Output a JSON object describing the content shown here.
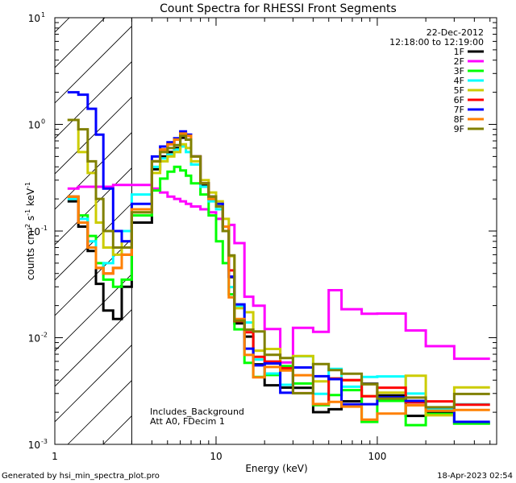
{
  "chart_data": {
    "type": "line",
    "title": "Count Spectra for RHESSI Front Segments",
    "xlabel": "Energy (keV)",
    "ylabel": "counts cm",
    "ylabel_sup1": "-2",
    "ylabel_mid": " s",
    "ylabel_sup2": "-1",
    "ylabel_end": " keV",
    "ylabel_sup3": "-1",
    "xscale": "log",
    "yscale": "log",
    "xlim": [
      1,
      550
    ],
    "ylim": [
      0.001,
      10
    ],
    "x_ticks": [
      {
        "v": 1,
        "label": "1"
      },
      {
        "v": 10,
        "label": "10"
      },
      {
        "v": 100,
        "label": "100"
      }
    ],
    "y_ticks": [
      {
        "v": 0.001,
        "base": "10",
        "exp": "-3"
      },
      {
        "v": 0.01,
        "base": "10",
        "exp": "-2"
      },
      {
        "v": 0.1,
        "base": "10",
        "exp": "-1"
      },
      {
        "v": 1,
        "base": "10",
        "exp": "0"
      },
      {
        "v": 10,
        "base": "10",
        "exp": "1"
      }
    ],
    "hatch_region_xmax": 3,
    "date": "22-Dec-2012",
    "time_range": "12:18:00 to 12:19:00",
    "annotation1": "Includes_Background",
    "annotation2": "Att A0, FDecim 1",
    "footer_left": "Generated by hsi_min_spectra_plot.pro",
    "footer_right": "18-Apr-2023 02:54",
    "legend_position": "top-right",
    "series": [
      {
        "name": "1F",
        "color": "#000000",
        "values": [
          0.19,
          0.11,
          0.065,
          0.032,
          0.018,
          0.015,
          0.03,
          0.12,
          0.38,
          0.5,
          0.55,
          0.6,
          0.75,
          0.72,
          0.5,
          0.27,
          0.21,
          0.17,
          0.1,
          0.03,
          0.013,
          0.009,
          0.006,
          0.0048,
          0.0039,
          0.0034,
          0.003,
          0.0028,
          0.0027,
          0.0025,
          0.0024,
          0.0022,
          0.0021,
          0.002
        ]
      },
      {
        "name": "2F",
        "color": "#ff00ff",
        "values": [
          0.25,
          0.26,
          0.26,
          0.26,
          0.26,
          0.27,
          0.27,
          0.27,
          0.25,
          0.23,
          0.21,
          0.2,
          0.19,
          0.18,
          0.17,
          0.16,
          0.15,
          0.13,
          0.11,
          0.085,
          0.058,
          0.035,
          0.018,
          0.0085,
          0.0073,
          0.01,
          0.015,
          0.02,
          0.024,
          0.019,
          0.016,
          0.013,
          0.009,
          0.006
        ]
      },
      {
        "name": "3F",
        "color": "#00ff00",
        "values": [
          0.21,
          0.14,
          0.09,
          0.05,
          0.035,
          0.03,
          0.035,
          0.14,
          0.24,
          0.31,
          0.36,
          0.4,
          0.37,
          0.33,
          0.28,
          0.22,
          0.14,
          0.08,
          0.05,
          0.025,
          0.012,
          0.008,
          0.006,
          0.0048,
          0.004,
          0.0035,
          0.0031,
          0.0028,
          0.0026,
          0.0024,
          0.0023,
          0.0022,
          0.0021,
          0.002
        ]
      },
      {
        "name": "4F",
        "color": "#00ffff",
        "values": [
          0.2,
          0.13,
          0.08,
          0.045,
          0.05,
          0.07,
          0.1,
          0.22,
          0.4,
          0.48,
          0.52,
          0.58,
          0.62,
          0.55,
          0.42,
          0.26,
          0.19,
          0.16,
          0.11,
          0.04,
          0.018,
          0.011,
          0.008,
          0.006,
          0.005,
          0.0045,
          0.0042,
          0.004,
          0.0038,
          0.0035,
          0.0033,
          0.003,
          0.0028,
          0.0026
        ]
      },
      {
        "name": "5F",
        "color": "#cccc00",
        "values": [
          1.1,
          0.55,
          0.35,
          0.12,
          0.07,
          0.06,
          0.08,
          0.15,
          0.35,
          0.45,
          0.5,
          0.55,
          0.65,
          0.6,
          0.45,
          0.3,
          0.23,
          0.19,
          0.13,
          0.045,
          0.02,
          0.012,
          0.008,
          0.0062,
          0.0052,
          0.0046,
          0.0042,
          0.004,
          0.0038,
          0.0035,
          0.0033,
          0.003,
          0.0028,
          0.0026
        ]
      },
      {
        "name": "6F",
        "color": "#ff0000",
        "values": [
          0.21,
          0.12,
          0.07,
          0.045,
          0.04,
          0.045,
          0.06,
          0.16,
          0.45,
          0.58,
          0.65,
          0.72,
          0.82,
          0.78,
          0.5,
          0.28,
          0.2,
          0.17,
          0.11,
          0.03,
          0.013,
          0.009,
          0.006,
          0.0048,
          0.004,
          0.0035,
          0.0031,
          0.0029,
          0.0027,
          0.0025,
          0.0024,
          0.0023,
          0.0022,
          0.0021
        ]
      },
      {
        "name": "7F",
        "color": "#0000ff",
        "values": [
          2.0,
          1.9,
          1.4,
          0.8,
          0.25,
          0.1,
          0.08,
          0.18,
          0.5,
          0.62,
          0.68,
          0.74,
          0.86,
          0.8,
          0.5,
          0.28,
          0.21,
          0.18,
          0.11,
          0.035,
          0.015,
          0.01,
          0.007,
          0.0052,
          0.0043,
          0.0038,
          0.0034,
          0.0031,
          0.0029,
          0.0027,
          0.0025,
          0.0024,
          0.0023,
          0.0022
        ]
      },
      {
        "name": "8F",
        "color": "#ff8000",
        "values": [
          0.21,
          0.12,
          0.07,
          0.045,
          0.04,
          0.045,
          0.06,
          0.16,
          0.45,
          0.58,
          0.65,
          0.72,
          0.82,
          0.78,
          0.5,
          0.28,
          0.2,
          0.17,
          0.11,
          0.03,
          0.013,
          0.009,
          0.006,
          0.0048,
          0.004,
          0.0035,
          0.0031,
          0.0029,
          0.0027,
          0.0025,
          0.0024,
          0.0023,
          0.0022,
          0.0021
        ]
      },
      {
        "name": "9F",
        "color": "#808000",
        "values": [
          1.1,
          0.9,
          0.45,
          0.2,
          0.1,
          0.07,
          0.07,
          0.15,
          0.45,
          0.55,
          0.6,
          0.64,
          0.78,
          0.72,
          0.5,
          0.28,
          0.21,
          0.17,
          0.1,
          0.04,
          0.018,
          0.011,
          0.008,
          0.006,
          0.005,
          0.0045,
          0.004,
          0.0037,
          0.0035,
          0.0032,
          0.003,
          0.0028,
          0.0026,
          0.0024
        ]
      }
    ],
    "energy_edges": [
      1.2,
      1.4,
      1.6,
      1.8,
      2.0,
      2.3,
      2.6,
      3.0,
      4.0,
      4.5,
      5.0,
      5.5,
      6.0,
      6.5,
      7.0,
      8.0,
      9.0,
      10.0,
      11.0,
      12.0,
      13.0,
      15.0,
      17.0,
      20.0,
      25.0,
      30.0,
      40.0,
      50.0,
      60.0,
      80.0,
      100.0,
      150.0,
      200.0,
      300.0,
      500.0
    ]
  }
}
